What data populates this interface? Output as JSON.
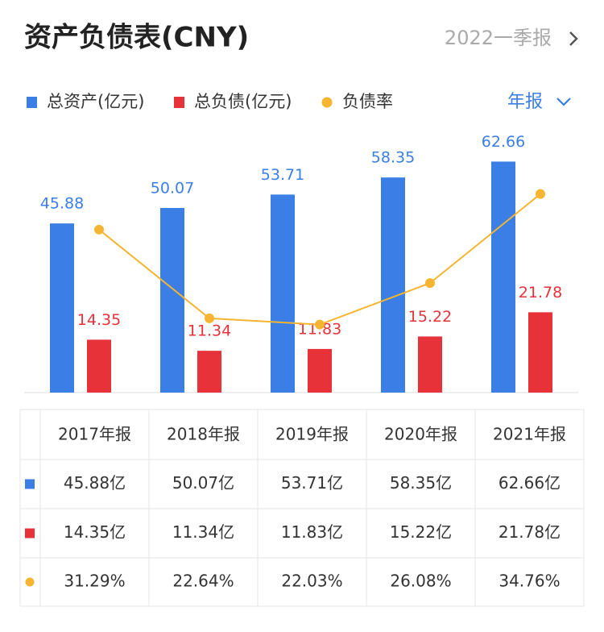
{
  "header": {
    "title": "资产负债表(CNY)",
    "period": "2022一季报",
    "toggle": "年报"
  },
  "chart_data": {
    "type": "bar",
    "categories": [
      "2017年报",
      "2018年报",
      "2019年报",
      "2020年报",
      "2021年报"
    ],
    "series": [
      {
        "name": "总资产(亿元)",
        "color": "#3a7ee6",
        "values": [
          45.88,
          50.07,
          53.71,
          58.35,
          62.66
        ]
      },
      {
        "name": "总负债(亿元)",
        "color": "#e8323a",
        "values": [
          14.35,
          11.34,
          11.83,
          15.22,
          21.78
        ]
      },
      {
        "name": "负债率",
        "color": "#f5b531",
        "type": "line",
        "axis": "y2",
        "values": [
          31.29,
          22.64,
          22.03,
          26.08,
          34.76
        ]
      }
    ],
    "ylim": [
      0,
      71.5
    ],
    "y2lim": [
      15.4,
      41.1
    ]
  },
  "table": {
    "rows": [
      [
        "45.88亿",
        "50.07亿",
        "53.71亿",
        "58.35亿",
        "62.66亿"
      ],
      [
        "14.35亿",
        "11.34亿",
        "11.83亿",
        "15.22亿",
        "21.78亿"
      ],
      [
        "31.29%",
        "22.64%",
        "22.03%",
        "26.08%",
        "34.76%"
      ]
    ]
  }
}
